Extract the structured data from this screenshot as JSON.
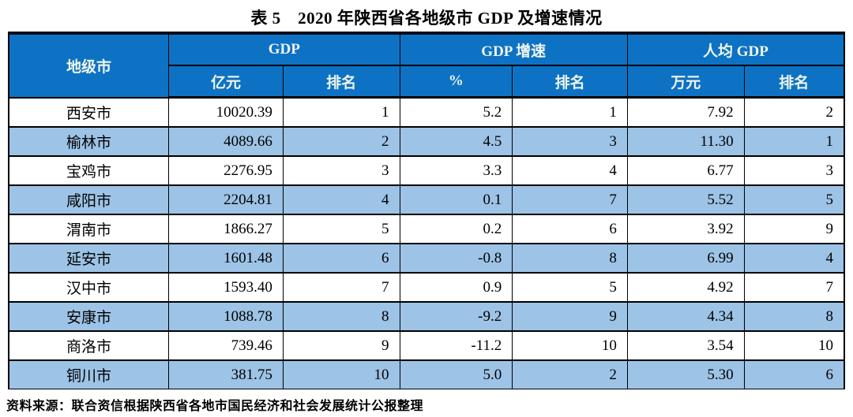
{
  "title": "表 5　2020 年陕西省各地级市 GDP 及增速情况",
  "colors": {
    "header_bg": "#0E72C4",
    "header_text": "#EFF6EC",
    "stripe_bg": "#9DC3E6",
    "border": "#000000",
    "body_text": "#000000"
  },
  "table": {
    "header": {
      "city": "地级市",
      "groups": [
        {
          "label": "GDP",
          "sub": [
            "亿元",
            "排名"
          ]
        },
        {
          "label": "GDP 增速",
          "sub": [
            "%",
            "排名"
          ]
        },
        {
          "label": "人均 GDP",
          "sub": [
            "万元",
            "排名"
          ]
        }
      ]
    },
    "column_keys": [
      "city",
      "gdp",
      "gdp_rank",
      "growth",
      "growth_rank",
      "per_capita",
      "per_capita_rank"
    ],
    "rows": [
      {
        "city": "西安市",
        "gdp": "10020.39",
        "gdp_rank": "1",
        "growth": "5.2",
        "growth_rank": "1",
        "per_capita": "7.92",
        "per_capita_rank": "2"
      },
      {
        "city": "榆林市",
        "gdp": "4089.66",
        "gdp_rank": "2",
        "growth": "4.5",
        "growth_rank": "3",
        "per_capita": "11.30",
        "per_capita_rank": "1"
      },
      {
        "city": "宝鸡市",
        "gdp": "2276.95",
        "gdp_rank": "3",
        "growth": "3.3",
        "growth_rank": "4",
        "per_capita": "6.77",
        "per_capita_rank": "3"
      },
      {
        "city": "咸阳市",
        "gdp": "2204.81",
        "gdp_rank": "4",
        "growth": "0.1",
        "growth_rank": "7",
        "per_capita": "5.52",
        "per_capita_rank": "5"
      },
      {
        "city": "渭南市",
        "gdp": "1866.27",
        "gdp_rank": "5",
        "growth": "0.2",
        "growth_rank": "6",
        "per_capita": "3.92",
        "per_capita_rank": "9"
      },
      {
        "city": "延安市",
        "gdp": "1601.48",
        "gdp_rank": "6",
        "growth": "-0.8",
        "growth_rank": "8",
        "per_capita": "6.99",
        "per_capita_rank": "4"
      },
      {
        "city": "汉中市",
        "gdp": "1593.40",
        "gdp_rank": "7",
        "growth": "0.9",
        "growth_rank": "5",
        "per_capita": "4.92",
        "per_capita_rank": "7"
      },
      {
        "city": "安康市",
        "gdp": "1088.78",
        "gdp_rank": "8",
        "growth": "-9.2",
        "growth_rank": "9",
        "per_capita": "4.34",
        "per_capita_rank": "8"
      },
      {
        "city": "商洛市",
        "gdp": "739.46",
        "gdp_rank": "9",
        "growth": "-11.2",
        "growth_rank": "10",
        "per_capita": "3.54",
        "per_capita_rank": "10"
      },
      {
        "city": "铜川市",
        "gdp": "381.75",
        "gdp_rank": "10",
        "growth": "5.0",
        "growth_rank": "2",
        "per_capita": "5.30",
        "per_capita_rank": "6"
      }
    ]
  },
  "source": "资料来源：联合资信根据陕西省各地市国民经济和社会发展统计公报整理"
}
